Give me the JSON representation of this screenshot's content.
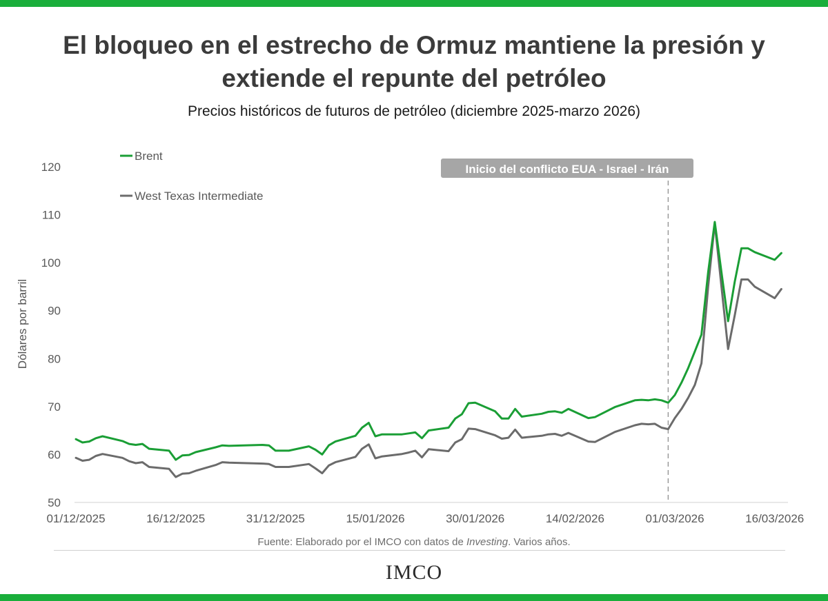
{
  "header": {
    "title_line1": "El bloqueo en el estrecho de Ormuz mantiene la presión y",
    "title_line2": "extiende el repunte del petróleo",
    "subtitle": "Precios históricos de futuros de petróleo (diciembre 2025-marzo 2026)"
  },
  "footer": {
    "source_prefix": "Fuente: Elaborado por el IMCO con datos de ",
    "source_italic": "Investing",
    "source_suffix": ". Varios años.",
    "logo_text": "IMCO"
  },
  "colors": {
    "accent": "#1aae3b",
    "brent": "#1a9e35",
    "wti": "#6b6b6b",
    "annotation_bg": "#a6a6a6"
  },
  "chart_data": {
    "type": "line",
    "ylabel": "Dólares por barril",
    "ylim": [
      50,
      120
    ],
    "yticks": [
      50,
      60,
      70,
      80,
      90,
      100,
      110,
      120
    ],
    "x_tick_labels": [
      "01/12/2025",
      "16/12/2025",
      "31/12/2025",
      "15/01/2026",
      "30/01/2026",
      "14/02/2026",
      "01/03/2026",
      "16/03/2026"
    ],
    "xlim": [
      "2025-12-01",
      "2026-03-18"
    ],
    "grid": false,
    "legend_position": "top-left",
    "annotation": {
      "label": "Inicio del conflicto EUA - Israel - Irán",
      "date": "2026-02-28"
    },
    "series": [
      {
        "name": "Brent",
        "color": "#1a9e35",
        "points": [
          [
            "2025-12-01",
            63.2
          ],
          [
            "2025-12-02",
            62.5
          ],
          [
            "2025-12-03",
            62.7
          ],
          [
            "2025-12-04",
            63.4
          ],
          [
            "2025-12-05",
            63.8
          ],
          [
            "2025-12-08",
            62.8
          ],
          [
            "2025-12-09",
            62.2
          ],
          [
            "2025-12-10",
            62.0
          ],
          [
            "2025-12-11",
            62.2
          ],
          [
            "2025-12-12",
            61.2
          ],
          [
            "2025-12-15",
            60.8
          ],
          [
            "2025-12-16",
            58.9
          ],
          [
            "2025-12-17",
            59.8
          ],
          [
            "2025-12-18",
            59.9
          ],
          [
            "2025-12-19",
            60.5
          ],
          [
            "2025-12-22",
            61.5
          ],
          [
            "2025-12-23",
            61.9
          ],
          [
            "2025-12-24",
            61.8
          ],
          [
            "2025-12-29",
            62.0
          ],
          [
            "2025-12-30",
            61.9
          ],
          [
            "2025-12-31",
            60.8
          ],
          [
            "2026-01-02",
            60.8
          ],
          [
            "2026-01-05",
            61.7
          ],
          [
            "2026-01-06",
            61.0
          ],
          [
            "2026-01-07",
            60.0
          ],
          [
            "2026-01-08",
            61.9
          ],
          [
            "2026-01-09",
            62.7
          ],
          [
            "2026-01-12",
            63.9
          ],
          [
            "2026-01-13",
            65.6
          ],
          [
            "2026-01-14",
            66.6
          ],
          [
            "2026-01-15",
            63.8
          ],
          [
            "2026-01-16",
            64.2
          ],
          [
            "2026-01-19",
            64.2
          ],
          [
            "2026-01-20",
            64.4
          ],
          [
            "2026-01-21",
            64.6
          ],
          [
            "2026-01-22",
            63.4
          ],
          [
            "2026-01-23",
            65.0
          ],
          [
            "2026-01-26",
            65.6
          ],
          [
            "2026-01-27",
            67.5
          ],
          [
            "2026-01-28",
            68.4
          ],
          [
            "2026-01-29",
            70.7
          ],
          [
            "2026-01-30",
            70.8
          ],
          [
            "2026-02-02",
            69.0
          ],
          [
            "2026-02-03",
            67.5
          ],
          [
            "2026-02-04",
            67.5
          ],
          [
            "2026-02-05",
            69.5
          ],
          [
            "2026-02-06",
            67.9
          ],
          [
            "2026-02-09",
            68.5
          ],
          [
            "2026-02-10",
            68.9
          ],
          [
            "2026-02-11",
            69.0
          ],
          [
            "2026-02-12",
            68.7
          ],
          [
            "2026-02-13",
            69.5
          ],
          [
            "2026-02-16",
            67.6
          ],
          [
            "2026-02-17",
            67.8
          ],
          [
            "2026-02-20",
            69.9
          ],
          [
            "2026-02-23",
            71.3
          ],
          [
            "2026-02-24",
            71.4
          ],
          [
            "2026-02-25",
            71.3
          ],
          [
            "2026-02-26",
            71.5
          ],
          [
            "2026-02-27",
            71.3
          ],
          [
            "2026-02-28",
            70.8
          ],
          [
            "2026-03-01",
            72.4
          ],
          [
            "2026-03-02",
            75.0
          ],
          [
            "2026-03-03",
            78.0
          ],
          [
            "2026-03-04",
            81.5
          ],
          [
            "2026-03-05",
            85.0
          ],
          [
            "2026-03-06",
            98.0
          ],
          [
            "2026-03-07",
            108.5
          ],
          [
            "2026-03-08",
            98.0
          ],
          [
            "2026-03-09",
            87.8
          ],
          [
            "2026-03-10",
            96.0
          ],
          [
            "2026-03-11",
            103.0
          ],
          [
            "2026-03-12",
            103.0
          ],
          [
            "2026-03-13",
            102.2
          ],
          [
            "2026-03-16",
            100.6
          ],
          [
            "2026-03-17",
            102.0
          ]
        ]
      },
      {
        "name": "West Texas Intermediate",
        "color": "#6b6b6b",
        "points": [
          [
            "2025-12-01",
            59.3
          ],
          [
            "2025-12-02",
            58.7
          ],
          [
            "2025-12-03",
            58.9
          ],
          [
            "2025-12-04",
            59.7
          ],
          [
            "2025-12-05",
            60.1
          ],
          [
            "2025-12-08",
            59.3
          ],
          [
            "2025-12-09",
            58.6
          ],
          [
            "2025-12-10",
            58.2
          ],
          [
            "2025-12-11",
            58.4
          ],
          [
            "2025-12-12",
            57.4
          ],
          [
            "2025-12-15",
            57.0
          ],
          [
            "2025-12-16",
            55.3
          ],
          [
            "2025-12-17",
            56.0
          ],
          [
            "2025-12-18",
            56.1
          ],
          [
            "2025-12-19",
            56.6
          ],
          [
            "2025-12-22",
            57.8
          ],
          [
            "2025-12-23",
            58.4
          ],
          [
            "2025-12-24",
            58.3
          ],
          [
            "2025-12-29",
            58.1
          ],
          [
            "2025-12-30",
            58.0
          ],
          [
            "2025-12-31",
            57.4
          ],
          [
            "2026-01-02",
            57.4
          ],
          [
            "2026-01-05",
            58.0
          ],
          [
            "2026-01-06",
            57.1
          ],
          [
            "2026-01-07",
            56.1
          ],
          [
            "2026-01-08",
            57.7
          ],
          [
            "2026-01-09",
            58.4
          ],
          [
            "2026-01-12",
            59.5
          ],
          [
            "2026-01-13",
            61.2
          ],
          [
            "2026-01-14",
            62.1
          ],
          [
            "2026-01-15",
            59.2
          ],
          [
            "2026-01-16",
            59.6
          ],
          [
            "2026-01-19",
            60.1
          ],
          [
            "2026-01-20",
            60.4
          ],
          [
            "2026-01-21",
            60.8
          ],
          [
            "2026-01-22",
            59.4
          ],
          [
            "2026-01-23",
            61.1
          ],
          [
            "2026-01-26",
            60.7
          ],
          [
            "2026-01-27",
            62.5
          ],
          [
            "2026-01-28",
            63.2
          ],
          [
            "2026-01-29",
            65.4
          ],
          [
            "2026-01-30",
            65.3
          ],
          [
            "2026-02-02",
            64.0
          ],
          [
            "2026-02-03",
            63.3
          ],
          [
            "2026-02-04",
            63.5
          ],
          [
            "2026-02-05",
            65.2
          ],
          [
            "2026-02-06",
            63.5
          ],
          [
            "2026-02-09",
            63.9
          ],
          [
            "2026-02-10",
            64.2
          ],
          [
            "2026-02-11",
            64.3
          ],
          [
            "2026-02-12",
            63.9
          ],
          [
            "2026-02-13",
            64.5
          ],
          [
            "2026-02-16",
            62.7
          ],
          [
            "2026-02-17",
            62.6
          ],
          [
            "2026-02-20",
            64.7
          ],
          [
            "2026-02-23",
            66.1
          ],
          [
            "2026-02-24",
            66.4
          ],
          [
            "2026-02-25",
            66.3
          ],
          [
            "2026-02-26",
            66.4
          ],
          [
            "2026-02-27",
            65.6
          ],
          [
            "2026-02-28",
            65.3
          ],
          [
            "2026-03-01",
            67.6
          ],
          [
            "2026-03-02",
            69.5
          ],
          [
            "2026-03-03",
            71.8
          ],
          [
            "2026-03-04",
            74.5
          ],
          [
            "2026-03-05",
            79.0
          ],
          [
            "2026-03-06",
            95.0
          ],
          [
            "2026-03-07",
            108.2
          ],
          [
            "2026-03-08",
            95.0
          ],
          [
            "2026-03-09",
            82.0
          ],
          [
            "2026-03-10",
            89.0
          ],
          [
            "2026-03-11",
            96.5
          ],
          [
            "2026-03-12",
            96.5
          ],
          [
            "2026-03-13",
            95.0
          ],
          [
            "2026-03-16",
            92.6
          ],
          [
            "2026-03-17",
            94.5
          ]
        ]
      }
    ]
  }
}
